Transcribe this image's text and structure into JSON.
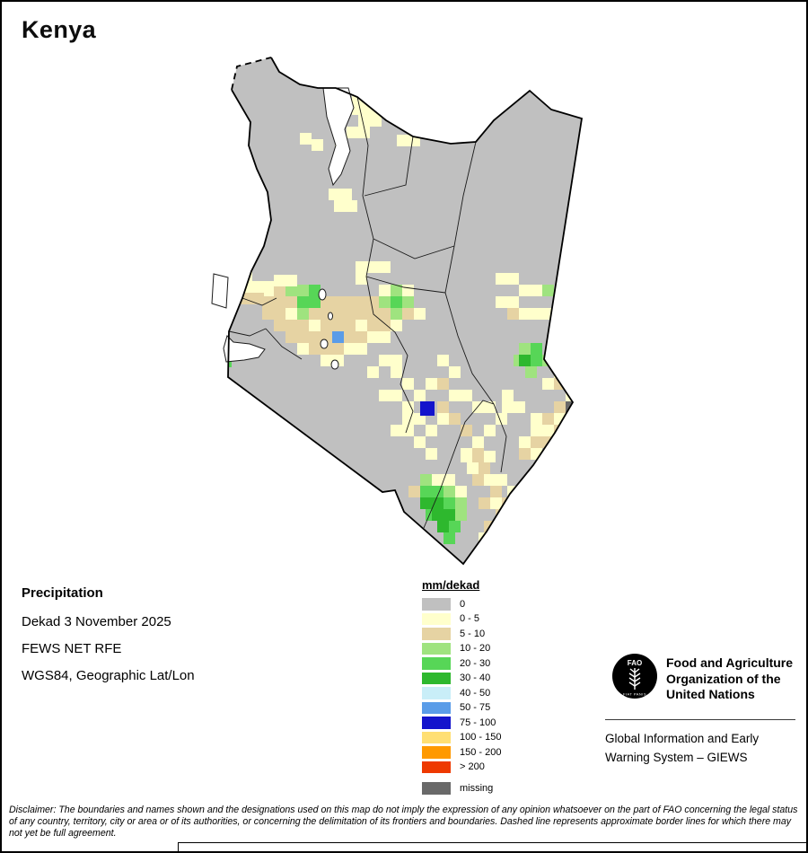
{
  "title": "Kenya",
  "info": {
    "heading": "Precipitation",
    "dekad": "Dekad 3 November 2025",
    "source": "FEWS NET RFE",
    "projection": "WGS84, Geographic Lat/Lon"
  },
  "legend": {
    "title": "mm/dekad",
    "items": [
      {
        "label": "0",
        "color": "#c0c0c0"
      },
      {
        "label": "0 - 5",
        "color": "#ffffcc"
      },
      {
        "label": "5 - 10",
        "color": "#e6d3a3"
      },
      {
        "label": "10 - 20",
        "color": "#9fe37f"
      },
      {
        "label": "20 - 30",
        "color": "#57d657"
      },
      {
        "label": "30 - 40",
        "color": "#2eb82e"
      },
      {
        "label": "40 - 50",
        "color": "#c9eef8"
      },
      {
        "label": "50 - 75",
        "color": "#5a9ce8"
      },
      {
        "label": "75 - 100",
        "color": "#1414cc"
      },
      {
        "label": "100 - 150",
        "color": "#ffdf73"
      },
      {
        "label": "150 - 200",
        "color": "#ff9900"
      },
      {
        "label": "> 200",
        "color": "#ee3900"
      },
      {
        "label": "missing",
        "color": "#696969",
        "gap": true
      }
    ]
  },
  "footer": {
    "logo_text": "FAO",
    "logo_motto": "FIAT PANIS",
    "org_lines": [
      "Food and Agriculture",
      "Organization of the",
      "United Nations"
    ],
    "giews_lines": [
      "Global Information and Early",
      "Warning System – GIEWS"
    ]
  },
  "disclaimer": "Disclaimer: The boundaries and names shown and the designations used on this map do not imply the expression of any opinion whatsoever on the part of FAO concerning the legal status of any country, territory, city or area or of its authorities, or concerning the delimitation of its frontiers and boundaries. Dashed line represents approximate border lines for which there may not yet be full agreement.",
  "map": {
    "region": "Kenya",
    "cells": [
      [
        390,
        100,
        1
      ],
      [
        403,
        100,
        1
      ],
      [
        390,
        113,
        1
      ],
      [
        403,
        113,
        1
      ],
      [
        416,
        113,
        1
      ],
      [
        397,
        126,
        1
      ],
      [
        410,
        126,
        1
      ],
      [
        384,
        139,
        1
      ],
      [
        397,
        139,
        1
      ],
      [
        332,
        146,
        1
      ],
      [
        345,
        153,
        1
      ],
      [
        371,
        152,
        1
      ],
      [
        440,
        148,
        1
      ],
      [
        453,
        148,
        1
      ],
      [
        364,
        208,
        1
      ],
      [
        377,
        208,
        1
      ],
      [
        370,
        221,
        1
      ],
      [
        383,
        221,
        1
      ],
      [
        240,
        298,
        1
      ],
      [
        253,
        298,
        4
      ],
      [
        266,
        298,
        1
      ],
      [
        240,
        311,
        4
      ],
      [
        253,
        311,
        3
      ],
      [
        266,
        311,
        1
      ],
      [
        279,
        311,
        1
      ],
      [
        240,
        324,
        1
      ],
      [
        253,
        324,
        2
      ],
      [
        266,
        324,
        2
      ],
      [
        279,
        324,
        2
      ],
      [
        292,
        318,
        1
      ],
      [
        290,
        311,
        1
      ],
      [
        303,
        304,
        1
      ],
      [
        316,
        304,
        1
      ],
      [
        303,
        317,
        2
      ],
      [
        316,
        317,
        3
      ],
      [
        236,
        370,
        3
      ],
      [
        236,
        383,
        3
      ],
      [
        236,
        396,
        3
      ],
      [
        243,
        394,
        4
      ],
      [
        249,
        381,
        1
      ],
      [
        329,
        315,
        3
      ],
      [
        342,
        315,
        4
      ],
      [
        420,
        315,
        1
      ],
      [
        433,
        315,
        3
      ],
      [
        446,
        315,
        1
      ],
      [
        290,
        328,
        2
      ],
      [
        303,
        328,
        2
      ],
      [
        316,
        328,
        2
      ],
      [
        329,
        328,
        4
      ],
      [
        342,
        328,
        4
      ],
      [
        355,
        328,
        2
      ],
      [
        368,
        328,
        2
      ],
      [
        381,
        328,
        2
      ],
      [
        394,
        328,
        2
      ],
      [
        407,
        328,
        2
      ],
      [
        420,
        328,
        3
      ],
      [
        433,
        328,
        4
      ],
      [
        446,
        328,
        3
      ],
      [
        290,
        341,
        2
      ],
      [
        303,
        341,
        2
      ],
      [
        316,
        341,
        1
      ],
      [
        329,
        341,
        3
      ],
      [
        342,
        341,
        2
      ],
      [
        355,
        341,
        2
      ],
      [
        368,
        341,
        2
      ],
      [
        381,
        341,
        2
      ],
      [
        394,
        341,
        2
      ],
      [
        407,
        341,
        2
      ],
      [
        420,
        341,
        2
      ],
      [
        433,
        341,
        3
      ],
      [
        446,
        341,
        2
      ],
      [
        459,
        341,
        1
      ],
      [
        303,
        354,
        2
      ],
      [
        316,
        354,
        2
      ],
      [
        329,
        354,
        2
      ],
      [
        342,
        354,
        1
      ],
      [
        355,
        354,
        2
      ],
      [
        368,
        354,
        2
      ],
      [
        381,
        354,
        2
      ],
      [
        394,
        354,
        1
      ],
      [
        407,
        354,
        2
      ],
      [
        420,
        354,
        2
      ],
      [
        433,
        354,
        1
      ],
      [
        316,
        367,
        2
      ],
      [
        329,
        367,
        2
      ],
      [
        342,
        367,
        2
      ],
      [
        355,
        367,
        2
      ],
      [
        368,
        367,
        7
      ],
      [
        381,
        367,
        2
      ],
      [
        394,
        367,
        2
      ],
      [
        407,
        367,
        1
      ],
      [
        420,
        367,
        1
      ],
      [
        329,
        380,
        1
      ],
      [
        342,
        380,
        2
      ],
      [
        355,
        380,
        2
      ],
      [
        368,
        380,
        2
      ],
      [
        381,
        380,
        1
      ],
      [
        394,
        380,
        1
      ],
      [
        355,
        393,
        1
      ],
      [
        368,
        393,
        1
      ],
      [
        394,
        289,
        1
      ],
      [
        407,
        289,
        1
      ],
      [
        394,
        302,
        1
      ],
      [
        420,
        289,
        1
      ],
      [
        420,
        393,
        1
      ],
      [
        433,
        393,
        1
      ],
      [
        407,
        406,
        1
      ],
      [
        433,
        406,
        1
      ],
      [
        446,
        419,
        1
      ],
      [
        472,
        419,
        1
      ],
      [
        485,
        419,
        2
      ],
      [
        420,
        432,
        1
      ],
      [
        433,
        432,
        1
      ],
      [
        459,
        432,
        1
      ],
      [
        446,
        445,
        1
      ],
      [
        446,
        458,
        1
      ],
      [
        459,
        458,
        1
      ],
      [
        433,
        471,
        1
      ],
      [
        446,
        471,
        1
      ],
      [
        472,
        471,
        1
      ],
      [
        459,
        484,
        1
      ],
      [
        472,
        497,
        1
      ],
      [
        485,
        458,
        1
      ],
      [
        498,
        432,
        1
      ],
      [
        466,
        445,
        8,
        16,
        16
      ],
      [
        550,
        302,
        1
      ],
      [
        563,
        302,
        1
      ],
      [
        576,
        315,
        1
      ],
      [
        589,
        315,
        1
      ],
      [
        602,
        315,
        3
      ],
      [
        550,
        328,
        1
      ],
      [
        563,
        328,
        1
      ],
      [
        563,
        341,
        2
      ],
      [
        576,
        341,
        1
      ],
      [
        589,
        341,
        1
      ],
      [
        602,
        341,
        1
      ],
      [
        570,
        393,
        3
      ],
      [
        576,
        380,
        3
      ],
      [
        589,
        380,
        4
      ],
      [
        576,
        393,
        5
      ],
      [
        589,
        393,
        4
      ],
      [
        583,
        406,
        3
      ],
      [
        602,
        393,
        3
      ],
      [
        615,
        393,
        1
      ],
      [
        628,
        393,
        1
      ],
      [
        615,
        406,
        1
      ],
      [
        602,
        419,
        1
      ],
      [
        615,
        419,
        2
      ],
      [
        628,
        432,
        1
      ],
      [
        557,
        432,
        1
      ],
      [
        557,
        445,
        1
      ],
      [
        570,
        445,
        1
      ],
      [
        615,
        445,
        2
      ],
      [
        628,
        445,
        12
      ],
      [
        641,
        445,
        12
      ],
      [
        628,
        458,
        12
      ],
      [
        641,
        458,
        12
      ],
      [
        615,
        458,
        1
      ],
      [
        602,
        458,
        2
      ],
      [
        589,
        458,
        1
      ],
      [
        589,
        471,
        1
      ],
      [
        602,
        471,
        1
      ],
      [
        615,
        471,
        2
      ],
      [
        576,
        484,
        1
      ],
      [
        589,
        484,
        2
      ],
      [
        602,
        484,
        2
      ],
      [
        589,
        497,
        1
      ],
      [
        576,
        497,
        2
      ],
      [
        485,
        393,
        1
      ],
      [
        498,
        406,
        1
      ],
      [
        511,
        432,
        1
      ],
      [
        524,
        445,
        1
      ],
      [
        537,
        445,
        1
      ],
      [
        550,
        458,
        1
      ],
      [
        537,
        471,
        1
      ],
      [
        485,
        445,
        2
      ],
      [
        498,
        458,
        2
      ],
      [
        511,
        471,
        2
      ],
      [
        524,
        484,
        1
      ],
      [
        511,
        497,
        1
      ],
      [
        524,
        497,
        2
      ],
      [
        466,
        526,
        3
      ],
      [
        479,
        526,
        1
      ],
      [
        492,
        526,
        1
      ],
      [
        453,
        539,
        2
      ],
      [
        466,
        539,
        4
      ],
      [
        479,
        539,
        4
      ],
      [
        492,
        539,
        3
      ],
      [
        505,
        539,
        1
      ],
      [
        466,
        552,
        5
      ],
      [
        479,
        552,
        5
      ],
      [
        492,
        552,
        4
      ],
      [
        505,
        552,
        3
      ],
      [
        472,
        565,
        4
      ],
      [
        479,
        565,
        5
      ],
      [
        492,
        565,
        5
      ],
      [
        505,
        565,
        3
      ],
      [
        485,
        578,
        5
      ],
      [
        498,
        578,
        4
      ],
      [
        492,
        591,
        4
      ],
      [
        511,
        500,
        1
      ],
      [
        524,
        500,
        2
      ],
      [
        537,
        500,
        1
      ],
      [
        518,
        513,
        1
      ],
      [
        531,
        513,
        2
      ],
      [
        524,
        526,
        2
      ],
      [
        537,
        526,
        1
      ],
      [
        550,
        526,
        1
      ],
      [
        563,
        539,
        1
      ],
      [
        544,
        539,
        2
      ],
      [
        531,
        552,
        2
      ],
      [
        544,
        552,
        1
      ],
      [
        557,
        552,
        2
      ],
      [
        550,
        565,
        2
      ],
      [
        537,
        578,
        2
      ],
      [
        544,
        578,
        2
      ],
      [
        550,
        578,
        1
      ],
      [
        531,
        591,
        1
      ]
    ]
  }
}
